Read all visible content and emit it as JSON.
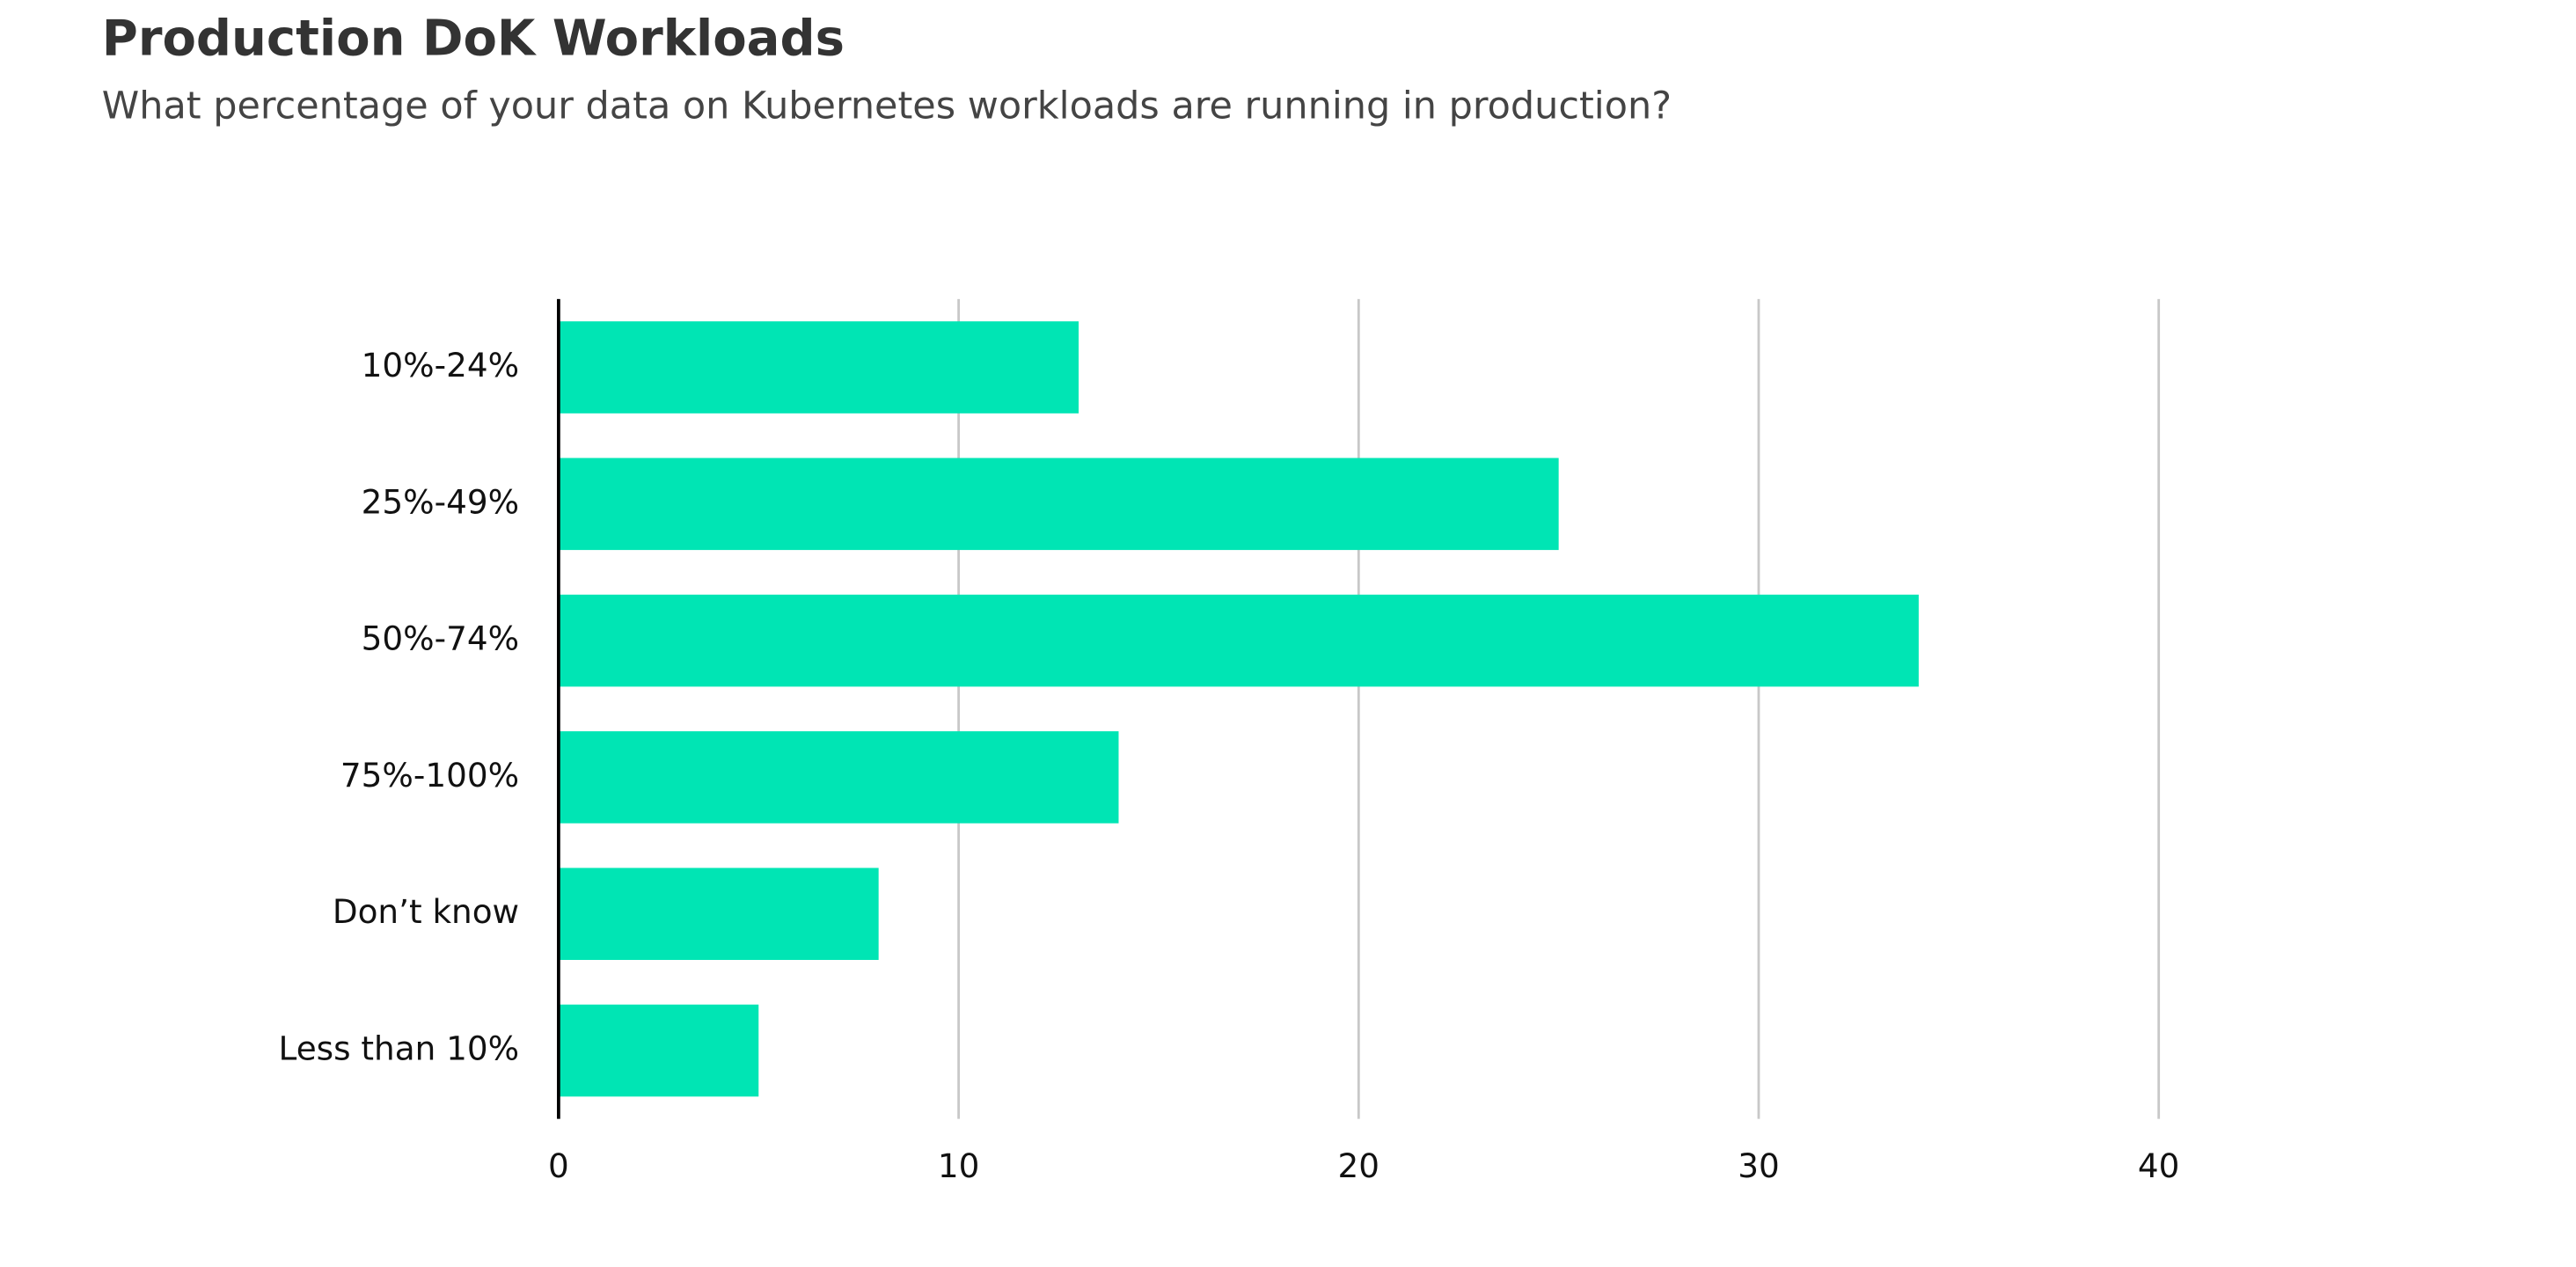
{
  "chart_data": {
    "type": "bar",
    "orientation": "horizontal",
    "title": "Production DoK Workloads",
    "subtitle": "What percentage of your data on Kubernetes workloads are running in production?",
    "categories": [
      "10%-24%",
      "25%-49%",
      "50%-74%",
      "75%-100%",
      "Don’t know",
      "Less than 10%"
    ],
    "values": [
      13,
      25,
      34,
      14,
      8,
      5
    ],
    "color": "#00e5b4",
    "xlim": [
      0,
      40
    ],
    "xticks": [
      0,
      10,
      20,
      30,
      40
    ],
    "grid": true
  }
}
